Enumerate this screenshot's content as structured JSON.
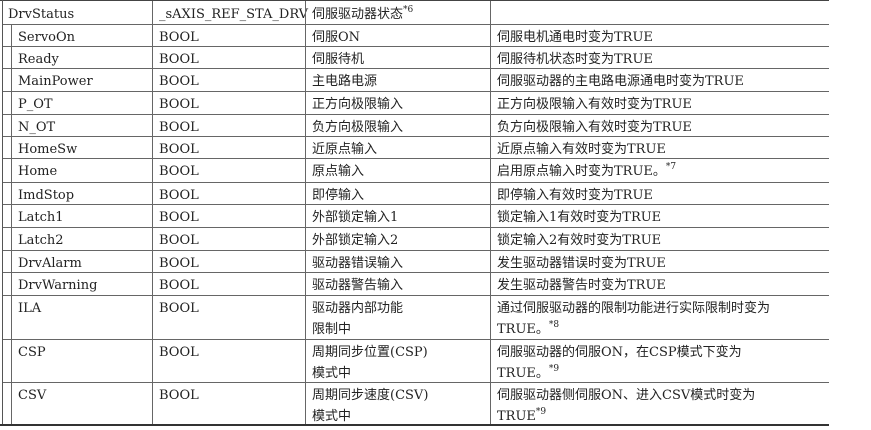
{
  "rows": [
    {
      "name": "DrvStatus",
      "type": "_sAXIS_REF_STA_DRV",
      "meaning": "伺服驱动器状态",
      "note": "*6",
      "desc": "",
      "desc_note": ""
    },
    {
      "name": "ServoOn",
      "type": "BOOL",
      "meaning": "伺服ON",
      "note": "",
      "desc": "伺服电机通电时变为TRUE",
      "desc_note": ""
    },
    {
      "name": "Ready",
      "type": "BOOL",
      "meaning": "伺服待机",
      "note": "",
      "desc": "伺服待机状态时变为TRUE",
      "desc_note": ""
    },
    {
      "name": "MainPower",
      "type": "BOOL",
      "meaning": "主电路电源",
      "note": "",
      "desc": "伺服驱动器的主电路电源通电时变为TRUE",
      "desc_note": ""
    },
    {
      "name": "P_OT",
      "type": "BOOL",
      "meaning": "正方向极限输入",
      "note": "",
      "desc": "正方向极限输入有效时变为TRUE",
      "desc_note": ""
    },
    {
      "name": "N_OT",
      "type": "BOOL",
      "meaning": "负方向极限输入",
      "note": "",
      "desc": "负方向极限输入有效时变为TRUE",
      "desc_note": ""
    },
    {
      "name": "HomeSw",
      "type": "BOOL",
      "meaning": "近原点输入",
      "note": "",
      "desc": "近原点输入有效时变为TRUE",
      "desc_note": ""
    },
    {
      "name": "Home",
      "type": "BOOL",
      "meaning": "原点输入",
      "note": "",
      "desc": "启用原点输入时变为TRUE。",
      "desc_note": "*7"
    },
    {
      "name": "ImdStop",
      "type": "BOOL",
      "meaning": "即停输入",
      "note": "",
      "desc": "即停输入有效时变为TRUE",
      "desc_note": ""
    },
    {
      "name": "Latch1",
      "type": "BOOL",
      "meaning": "外部锁定输入1",
      "note": "",
      "desc": "锁定输入1有效时变为TRUE",
      "desc_note": ""
    },
    {
      "name": "Latch2",
      "type": "BOOL",
      "meaning": "外部锁定输入2",
      "note": "",
      "desc": "锁定输入2有效时变为TRUE",
      "desc_note": ""
    },
    {
      "name": "DrvAlarm",
      "type": "BOOL",
      "meaning": "驱动器错误输入",
      "note": "",
      "desc": "发生驱动器错误时变为TRUE",
      "desc_note": ""
    },
    {
      "name": "DrvWarning",
      "type": "BOOL",
      "meaning": "驱动器警告输入",
      "note": "",
      "desc": "发生驱动器警告时变为TRUE",
      "desc_note": ""
    },
    {
      "name": "ILA",
      "type": "BOOL",
      "meaning": "驱动器内部功能\n限制中",
      "note": "",
      "desc": "通过伺服驱动器的限制功能进行实际限制时变为\nTRUE。",
      "desc_note": "*8"
    },
    {
      "name": "CSP",
      "type": "BOOL",
      "meaning": "周期同步位置(CSP)\n模式中",
      "note": "",
      "desc": "伺服驱动器的伺服ON，在CSP模式下变为\nTRUE。",
      "desc_note": "*9"
    },
    {
      "name": "CSV",
      "type": "BOOL",
      "meaning": "周期同步速度(CSV)\n模式中",
      "note": "",
      "desc": "伺服驱动器侧伺服ON、进入CSV模式时变为\nTRUE",
      "desc_note": "*9"
    }
  ]
}
